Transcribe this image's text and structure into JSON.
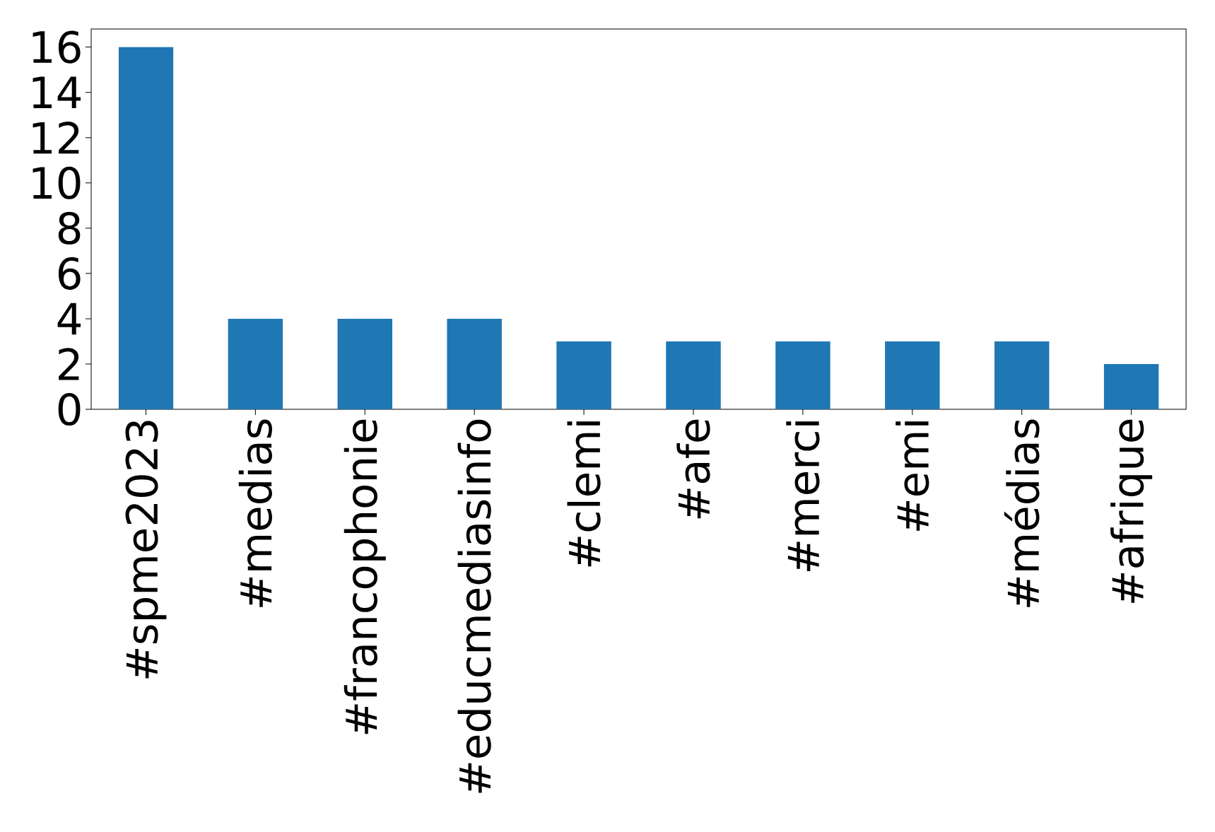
{
  "chart_data": {
    "type": "bar",
    "categories": [
      "#spme2023",
      "#medias",
      "#francophonie",
      "#educmediasinfo",
      "#clemi",
      "#afe",
      "#merci",
      "#emi",
      "#médias",
      "#afrique"
    ],
    "values": [
      16,
      4,
      4,
      4,
      3,
      3,
      3,
      3,
      3,
      2
    ],
    "color": "#1f77b4",
    "ylim": [
      0,
      16.8
    ],
    "yticks": [
      0,
      2,
      4,
      6,
      8,
      10,
      12,
      14,
      16
    ],
    "grid": false
  }
}
